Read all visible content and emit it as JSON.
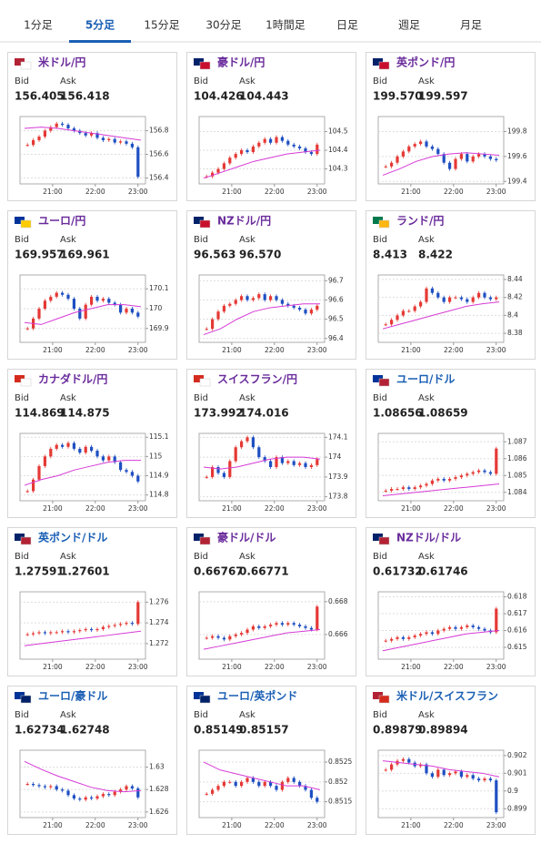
{
  "tabs": [
    "1分足",
    "5分足",
    "15分足",
    "30分足",
    "1時間足",
    "日足",
    "週足",
    "月足"
  ],
  "panels": [
    {
      "pair": "米ドル/円",
      "title_color": "#6a2c9c",
      "bid_label": "Bid",
      "ask_label": "Ask",
      "bid": "156.405",
      "ask": "156.418",
      "chart": {
        "type": "candlestick",
        "x_labels": [
          "21:00",
          "22:00",
          "23:00"
        ],
        "ylim": [
          156.35,
          156.92
        ],
        "yticks": [
          156.4,
          156.6,
          156.8
        ],
        "closes": [
          156.68,
          156.72,
          156.75,
          156.8,
          156.83,
          156.86,
          156.85,
          156.82,
          156.8,
          156.78,
          156.76,
          156.78,
          156.74,
          156.72,
          156.73,
          156.7,
          156.71,
          156.69,
          156.66,
          156.41
        ],
        "ma": [
          156.82,
          156.83,
          156.82,
          156.8,
          156.78,
          156.76,
          156.74,
          156.72
        ]
      }
    },
    {
      "pair": "豪ドル/円",
      "title_color": "#6a2c9c",
      "bid_label": "Bid",
      "ask_label": "Ask",
      "bid": "104.426",
      "ask": "104.443",
      "chart": {
        "type": "candlestick",
        "x_labels": [
          "21:00",
          "22:00",
          "23:00"
        ],
        "ylim": [
          104.22,
          104.58
        ],
        "yticks": [
          104.3,
          104.4,
          104.5
        ],
        "closes": [
          104.26,
          104.28,
          104.3,
          104.33,
          104.36,
          104.38,
          104.4,
          104.39,
          104.42,
          104.44,
          104.46,
          104.44,
          104.47,
          104.45,
          104.43,
          104.42,
          104.41,
          104.39,
          104.38,
          104.43
        ],
        "ma": [
          104.25,
          104.28,
          104.31,
          104.34,
          104.36,
          104.38,
          104.39,
          104.4
        ]
      }
    },
    {
      "pair": "英ポンド/円",
      "title_color": "#6a2c9c",
      "bid_label": "Bid",
      "ask_label": "Ask",
      "bid": "199.570",
      "ask": "199.597",
      "chart": {
        "type": "candlestick",
        "x_labels": [
          "21:00",
          "22:00",
          "23:00"
        ],
        "ylim": [
          199.38,
          199.92
        ],
        "yticks": [
          199.4,
          199.6,
          199.8
        ],
        "closes": [
          199.52,
          199.55,
          199.6,
          199.64,
          199.68,
          199.7,
          199.72,
          199.68,
          199.66,
          199.62,
          199.55,
          199.5,
          199.58,
          199.62,
          199.56,
          199.6,
          199.62,
          199.6,
          199.58,
          199.57
        ],
        "ma": [
          199.45,
          199.5,
          199.56,
          199.6,
          199.62,
          199.63,
          199.62,
          199.61
        ]
      }
    },
    {
      "pair": "ユーロ/円",
      "title_color": "#6a2c9c",
      "bid_label": "Bid",
      "ask_label": "Ask",
      "bid": "169.957",
      "ask": "169.961",
      "chart": {
        "type": "candlestick",
        "x_labels": [
          "21:00",
          "22:00",
          "23:00"
        ],
        "ylim": [
          169.83,
          170.17
        ],
        "yticks": [
          169.9,
          170,
          170.1
        ],
        "closes": [
          169.9,
          169.95,
          170.0,
          170.04,
          170.06,
          170.08,
          170.07,
          170.05,
          170.0,
          169.95,
          170.02,
          170.06,
          170.04,
          170.05,
          170.03,
          170.02,
          169.98,
          170.0,
          169.98,
          169.96
        ],
        "ma": [
          169.93,
          169.92,
          169.95,
          169.98,
          170.0,
          170.02,
          170.02,
          170.01
        ]
      }
    },
    {
      "pair": "NZドル/円",
      "title_color": "#6a2c9c",
      "bid_label": "Bid",
      "ask_label": "Ask",
      "bid": "96.563",
      "ask": "96.570",
      "chart": {
        "type": "candlestick",
        "x_labels": [
          "21:00",
          "22:00",
          "23:00"
        ],
        "ylim": [
          96.38,
          96.73
        ],
        "yticks": [
          96.4,
          96.5,
          96.6,
          96.7
        ],
        "closes": [
          96.45,
          96.5,
          96.54,
          96.57,
          96.58,
          96.6,
          96.62,
          96.6,
          96.61,
          96.63,
          96.6,
          96.62,
          96.6,
          96.58,
          96.57,
          96.56,
          96.55,
          96.53,
          96.55,
          96.57
        ],
        "ma": [
          96.42,
          96.45,
          96.5,
          96.54,
          96.56,
          96.57,
          96.58,
          96.58
        ]
      }
    },
    {
      "pair": "ランド/円",
      "title_color": "#6a2c9c",
      "bid_label": "Bid",
      "ask_label": "Ask",
      "bid": "8.413",
      "ask": "8.422",
      "chart": {
        "type": "candlestick",
        "x_labels": [
          "21:00",
          "22:00",
          "23:00"
        ],
        "ylim": [
          8.37,
          8.445
        ],
        "yticks": [
          8.38,
          8.4,
          8.42,
          8.44
        ],
        "closes": [
          8.39,
          8.395,
          8.4,
          8.405,
          8.405,
          8.41,
          8.415,
          8.43,
          8.425,
          8.42,
          8.415,
          8.42,
          8.42,
          8.418,
          8.415,
          8.42,
          8.425,
          8.42,
          8.418,
          8.42
        ],
        "ma": [
          8.385,
          8.39,
          8.395,
          8.4,
          8.405,
          8.41,
          8.413,
          8.415
        ]
      }
    },
    {
      "pair": "カナダドル/円",
      "title_color": "#6a2c9c",
      "bid_label": "Bid",
      "ask_label": "Ask",
      "bid": "114.869",
      "ask": "114.875",
      "chart": {
        "type": "candlestick",
        "x_labels": [
          "21:00",
          "22:00",
          "23:00"
        ],
        "ylim": [
          114.77,
          115.12
        ],
        "yticks": [
          114.8,
          114.9,
          115,
          115.1
        ],
        "closes": [
          114.82,
          114.88,
          114.95,
          115.0,
          115.04,
          115.06,
          115.05,
          115.07,
          115.04,
          115.02,
          115.05,
          115.03,
          115.0,
          114.98,
          115.0,
          114.97,
          114.93,
          114.92,
          114.9,
          114.87
        ],
        "ma": [
          114.85,
          114.88,
          114.9,
          114.93,
          114.95,
          114.97,
          114.98,
          114.98
        ]
      }
    },
    {
      "pair": "スイスフラン/円",
      "title_color": "#6a2c9c",
      "bid_label": "Bid",
      "ask_label": "Ask",
      "bid": "173.992",
      "ask": "174.016",
      "chart": {
        "type": "candlestick",
        "x_labels": [
          "21:00",
          "22:00",
          "23:00"
        ],
        "ylim": [
          173.78,
          174.12
        ],
        "yticks": [
          173.8,
          173.9,
          174,
          174.1
        ],
        "closes": [
          173.9,
          173.95,
          173.92,
          173.9,
          173.98,
          174.05,
          174.08,
          174.1,
          174.05,
          174.0,
          173.98,
          173.95,
          174.0,
          173.97,
          173.98,
          173.96,
          173.97,
          173.95,
          173.96,
          173.99
        ],
        "ma": [
          173.95,
          173.94,
          173.95,
          173.97,
          173.99,
          174.0,
          174.0,
          173.99
        ]
      }
    },
    {
      "pair": "ユーロ/ドル",
      "title_color": "#1a5fb4",
      "bid_label": "Bid",
      "ask_label": "Ask",
      "bid": "1.08656",
      "ask": "1.08659",
      "chart": {
        "type": "candlestick",
        "x_labels": [
          "21:00",
          "22:00",
          "23:00"
        ],
        "ylim": [
          1.0835,
          1.0875
        ],
        "yticks": [
          1.084,
          1.085,
          1.086,
          1.087
        ],
        "closes": [
          1.0841,
          1.0842,
          1.0842,
          1.0843,
          1.0842,
          1.0843,
          1.0844,
          1.0845,
          1.0847,
          1.0848,
          1.0847,
          1.0848,
          1.0849,
          1.085,
          1.0851,
          1.0852,
          1.0853,
          1.0852,
          1.0851,
          1.0866
        ],
        "ma": [
          1.0838,
          1.0839,
          1.084,
          1.0841,
          1.0842,
          1.0843,
          1.0844,
          1.0845
        ]
      }
    },
    {
      "pair": "英ポンド/ドル",
      "title_color": "#1a5fb4",
      "bid_label": "Bid",
      "ask_label": "Ask",
      "bid": "1.27591",
      "ask": "1.27601",
      "chart": {
        "type": "candlestick",
        "x_labels": [
          "21:00",
          "22:00",
          "23:00"
        ],
        "ylim": [
          1.2705,
          1.277
        ],
        "yticks": [
          1.272,
          1.274,
          1.276
        ],
        "closes": [
          1.2729,
          1.273,
          1.2731,
          1.273,
          1.2731,
          1.2731,
          1.2732,
          1.2731,
          1.2732,
          1.2733,
          1.2734,
          1.2733,
          1.2734,
          1.2736,
          1.2737,
          1.2738,
          1.2739,
          1.274,
          1.2739,
          1.276
        ],
        "ma": [
          1.2718,
          1.272,
          1.2722,
          1.2724,
          1.2726,
          1.2728,
          1.273,
          1.2732
        ]
      }
    },
    {
      "pair": "豪ドル/ドル",
      "title_color": "#6a2c9c",
      "bid_label": "Bid",
      "ask_label": "Ask",
      "bid": "0.66767",
      "ask": "0.66771",
      "chart": {
        "type": "candlestick",
        "x_labels": [
          "21:00",
          "22:00",
          "23:00"
        ],
        "ylim": [
          0.6645,
          0.6686
        ],
        "yticks": [
          0.666,
          0.668
        ],
        "closes": [
          0.6658,
          0.6659,
          0.6658,
          0.6657,
          0.6659,
          0.666,
          0.6661,
          0.6663,
          0.6665,
          0.6664,
          0.6665,
          0.6666,
          0.6667,
          0.6666,
          0.6667,
          0.6666,
          0.6665,
          0.6664,
          0.6663,
          0.6677
        ],
        "ma": [
          0.6651,
          0.6653,
          0.6655,
          0.6657,
          0.6659,
          0.6661,
          0.6662,
          0.6663
        ]
      }
    },
    {
      "pair": "NZドル/ドル",
      "title_color": "#6a2c9c",
      "bid_label": "Bid",
      "ask_label": "Ask",
      "bid": "0.61732",
      "ask": "0.61746",
      "chart": {
        "type": "candlestick",
        "x_labels": [
          "21:00",
          "22:00",
          "23:00"
        ],
        "ylim": [
          0.6143,
          0.6183
        ],
        "yticks": [
          0.615,
          0.616,
          0.617,
          0.618
        ],
        "closes": [
          0.6154,
          0.6155,
          0.6156,
          0.6155,
          0.6156,
          0.6157,
          0.6158,
          0.6159,
          0.6158,
          0.616,
          0.6161,
          0.6162,
          0.6161,
          0.6162,
          0.6163,
          0.6162,
          0.6161,
          0.616,
          0.6159,
          0.6173
        ],
        "ma": [
          0.6148,
          0.615,
          0.6152,
          0.6154,
          0.6156,
          0.6158,
          0.6159,
          0.616
        ]
      }
    },
    {
      "pair": "ユーロ/豪ドル",
      "title_color": "#1a5fb4",
      "bid_label": "Bid",
      "ask_label": "Ask",
      "bid": "1.62734",
      "ask": "1.62748",
      "chart": {
        "type": "candlestick",
        "x_labels": [
          "21:00",
          "22:00",
          "23:00"
        ],
        "ylim": [
          1.6255,
          1.6315
        ],
        "yticks": [
          1.626,
          1.628,
          1.63
        ],
        "closes": [
          1.6285,
          1.6284,
          1.6283,
          1.6282,
          1.6283,
          1.628,
          1.6279,
          1.6275,
          1.6272,
          1.6271,
          1.6273,
          1.6272,
          1.6274,
          1.6276,
          1.6275,
          1.6278,
          1.628,
          1.6283,
          1.6281,
          1.6273
        ],
        "ma": [
          1.6305,
          1.6298,
          1.6292,
          1.6287,
          1.6282,
          1.6279,
          1.6278,
          1.6279
        ]
      }
    },
    {
      "pair": "ユーロ/英ポンド",
      "title_color": "#1a5fb4",
      "bid_label": "Bid",
      "ask_label": "Ask",
      "bid": "0.85149",
      "ask": "0.85157",
      "chart": {
        "type": "candlestick",
        "x_labels": [
          "21:00",
          "22:00",
          "23:00"
        ],
        "ylim": [
          0.8511,
          0.8528
        ],
        "yticks": [
          0.8515,
          0.852,
          0.8525
        ],
        "closes": [
          0.8517,
          0.8518,
          0.8519,
          0.852,
          0.852,
          0.8519,
          0.852,
          0.8521,
          0.852,
          0.8519,
          0.852,
          0.8519,
          0.8518,
          0.852,
          0.8521,
          0.852,
          0.8519,
          0.8518,
          0.8516,
          0.8515
        ],
        "ma": [
          0.8525,
          0.8523,
          0.8522,
          0.8521,
          0.852,
          0.8519,
          0.8519,
          0.8518
        ]
      }
    },
    {
      "pair": "米ドル/スイスフラン",
      "title_color": "#1a5fb4",
      "bid_label": "Bid",
      "ask_label": "Ask",
      "bid": "0.89879",
      "ask": "0.89894",
      "chart": {
        "type": "candlestick",
        "x_labels": [
          "21:00",
          "22:00",
          "23:00"
        ],
        "ylim": [
          0.8985,
          0.9023
        ],
        "yticks": [
          0.899,
          0.9,
          0.901,
          0.902
        ],
        "closes": [
          0.9012,
          0.9015,
          0.9017,
          0.9018,
          0.9016,
          0.9014,
          0.9015,
          0.901,
          0.9008,
          0.9012,
          0.9009,
          0.901,
          0.9011,
          0.9008,
          0.9009,
          0.9007,
          0.9006,
          0.9007,
          0.9006,
          0.8988
        ],
        "ma": [
          0.9017,
          0.9016,
          0.9015,
          0.9014,
          0.9012,
          0.9011,
          0.901,
          0.9008
        ]
      }
    }
  ],
  "active_tab": 1
}
